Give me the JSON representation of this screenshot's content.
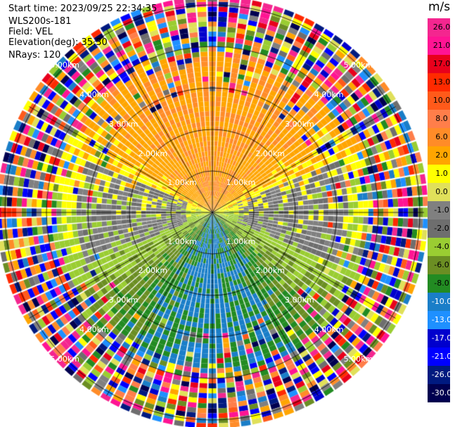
{
  "header": {
    "start_time": "Start time: 2023/09/25 22:34:35",
    "instrument": "WLS200s-181",
    "field": "Field: VEL",
    "elevation": "Elevation(deg): 35.30",
    "nrays": "NRays: 120"
  },
  "chart_data": {
    "type": "heatmap",
    "projection": "polar-ppi",
    "field": "VEL",
    "unit": "m/s",
    "n_rays": 120,
    "range_rings_km": [
      1.0,
      2.0,
      3.0,
      4.0,
      5.0
    ],
    "ring_labels": [
      "1.00km",
      "2.00km",
      "3.00km",
      "4.00km",
      "5.00km"
    ],
    "max_range_km": 5.1,
    "colorbar": {
      "title": "m/s",
      "ticks": [
        "26.0",
        "21.0",
        "17.0",
        "13.0",
        "10.0",
        "8.0",
        "6.0",
        "2.0",
        "1.0",
        "0.0",
        "-1.0",
        "-2.0",
        "-4.0",
        "-6.0",
        "-8.0",
        "-10.0",
        "-13.0",
        "-17.0",
        "-21.0",
        "-26.0",
        "-30.0"
      ],
      "colors": [
        "#f4268f",
        "#ff1493",
        "#e8001c",
        "#ff2a00",
        "#ff5a1a",
        "#ff7e4a",
        "#ff8c28",
        "#ffa500",
        "#ffff00",
        "#e0e05a",
        "#808080",
        "#6e6e6e",
        "#9acd32",
        "#6b8e23",
        "#228b22",
        "#1a7ec8",
        "#1e90ff",
        "#0000cd",
        "#0000ff",
        "#001a80",
        "#000050"
      ]
    },
    "pattern": {
      "north_sector": "positive velocity (orange/yellow)",
      "south_sector": "negative velocity (green/blue)",
      "east_west_band": "near zero (gray)",
      "outer_annulus_km": [
        3.6,
        5.1
      ]
    }
  }
}
